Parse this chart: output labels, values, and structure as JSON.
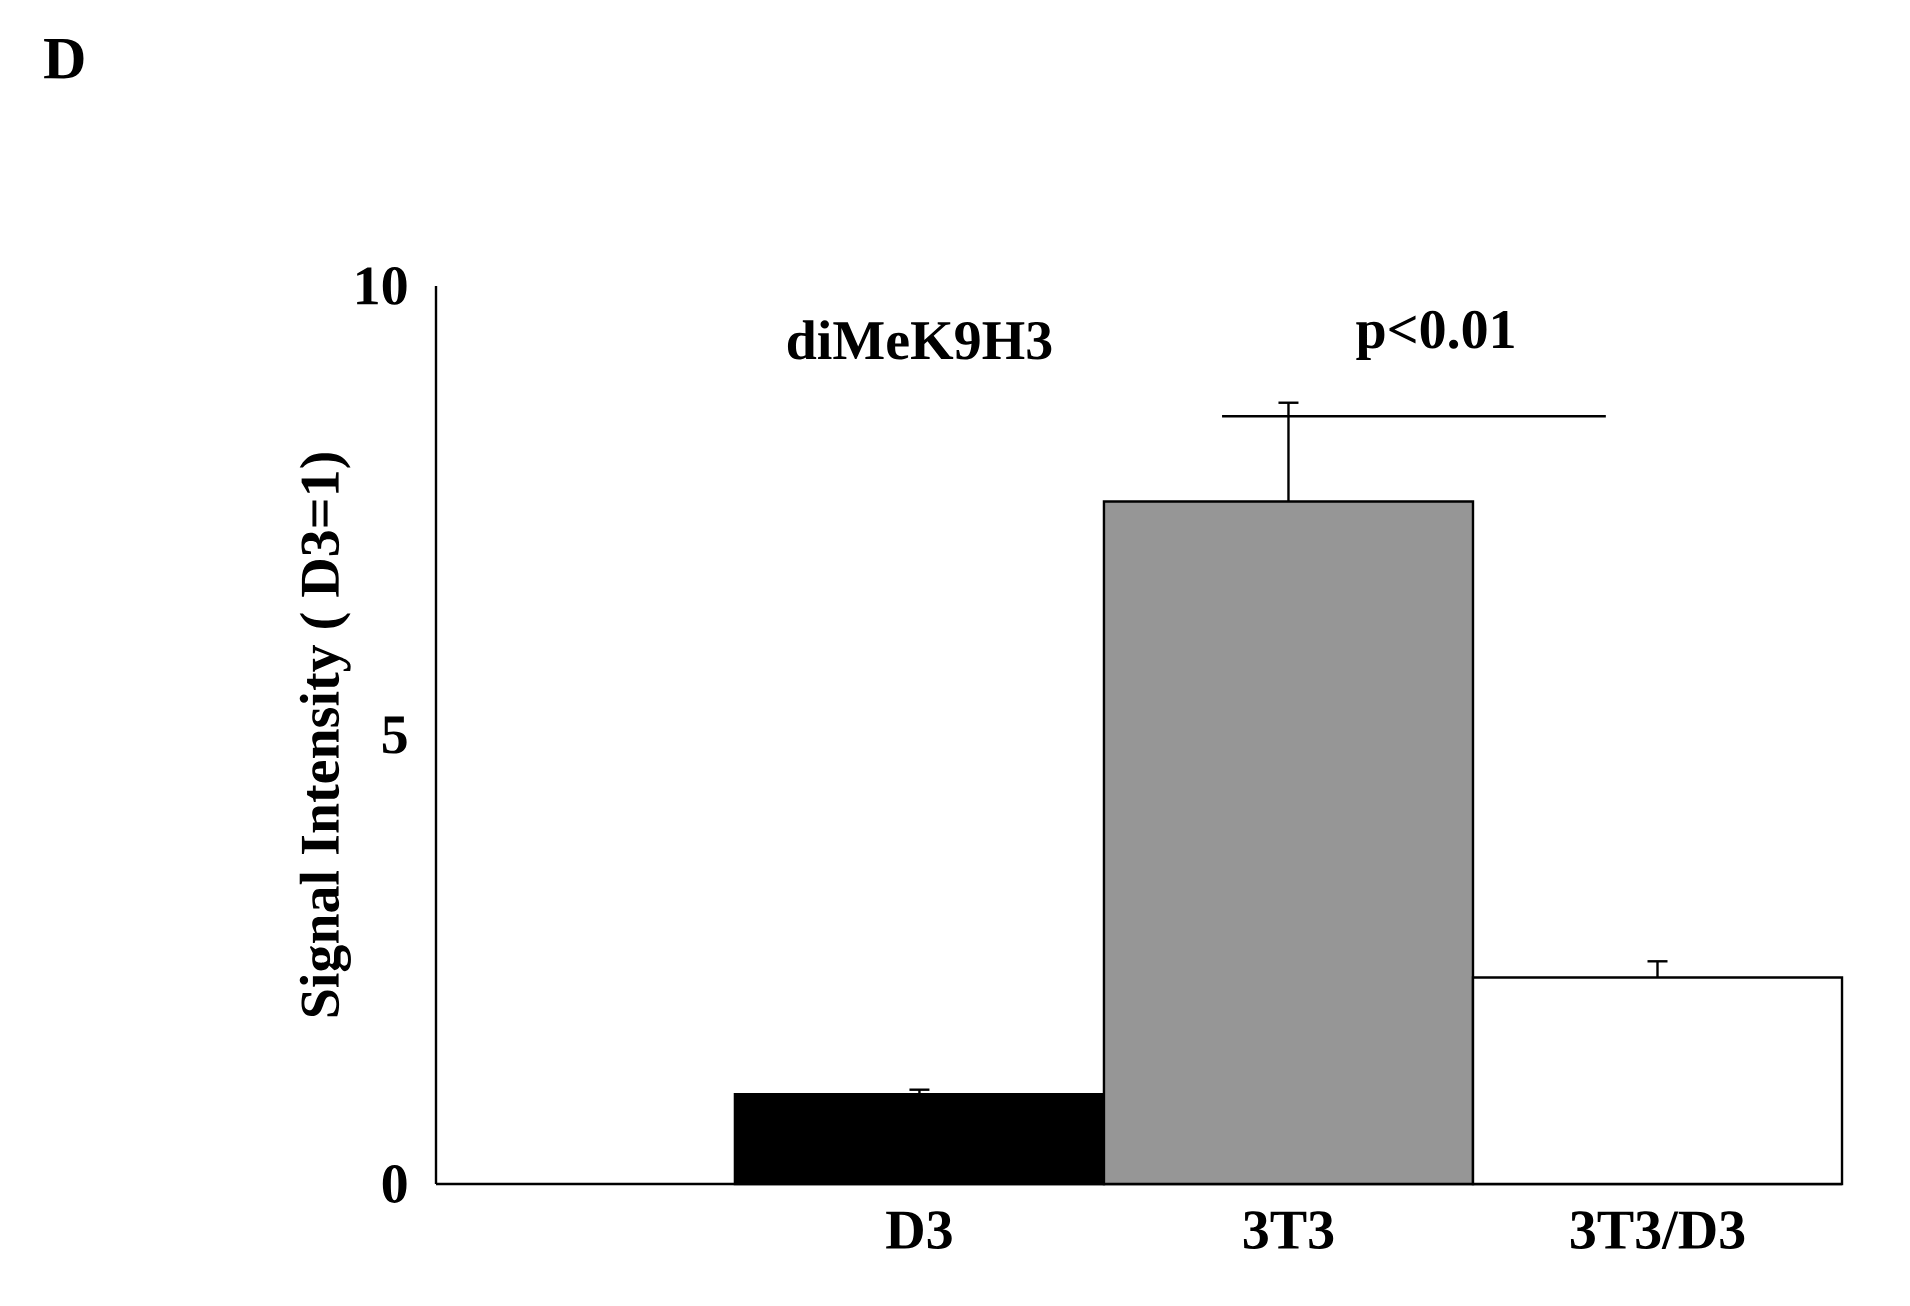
{
  "chart_data": {
    "type": "bar",
    "title": "diMeK9H3",
    "ylabel": "Signal Intensity ( D3=1)",
    "categories": [
      "D3",
      "3T3",
      "3T3/D3"
    ],
    "values": [
      1.0,
      7.6,
      2.3
    ],
    "colors": [
      "#000000",
      "#969696",
      "#ffffff"
    ],
    "errors": [
      0.05,
      1.1,
      0.18
    ],
    "ylim": [
      0,
      10
    ],
    "yticks": [
      0,
      5,
      10
    ],
    "annotations": [
      "D",
      "p<0.01"
    ]
  }
}
